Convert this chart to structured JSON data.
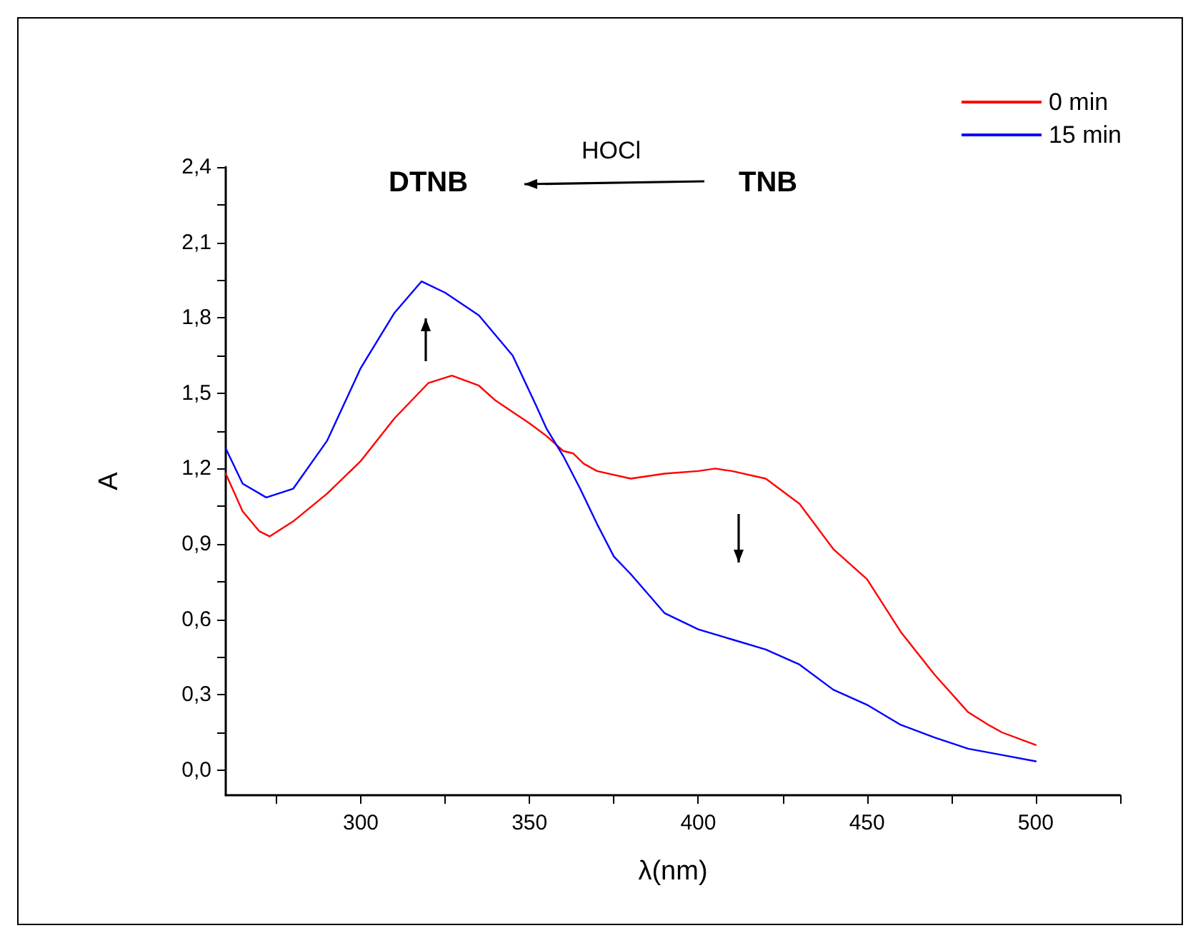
{
  "chart_data": {
    "type": "line",
    "xlabel": "λ(nm)",
    "ylabel": "A",
    "annotations": [
      "DTNB",
      "HOCl",
      "TNB"
    ],
    "xlim": [
      260,
      525
    ],
    "xticks": [
      {
        "value": 275,
        "label": null
      },
      300,
      {
        "value": 325,
        "label": null
      },
      350,
      {
        "value": 375,
        "label": null
      },
      400,
      {
        "value": 425,
        "label": null
      },
      450,
      {
        "value": 475,
        "label": null
      },
      500,
      {
        "value": 525,
        "label": null
      }
    ],
    "ylim": [
      -0.1,
      2.4
    ],
    "yticks": [
      {
        "value": 0,
        "label": "0,0"
      },
      {
        "value": 0.15,
        "label": null
      },
      {
        "value": 0.3,
        "label": "0,3"
      },
      {
        "value": 0.45,
        "label": null
      },
      {
        "value": 0.6,
        "label": "0,6"
      },
      {
        "value": 0.75,
        "label": null
      },
      {
        "value": 0.9,
        "label": "0,9"
      },
      {
        "value": 1.05,
        "label": null
      },
      {
        "value": 1.2,
        "label": "1,2"
      },
      {
        "value": 1.35,
        "label": null
      },
      {
        "value": 1.5,
        "label": "1,5"
      },
      {
        "value": 1.65,
        "label": null
      },
      {
        "value": 1.8,
        "label": "1,8"
      },
      {
        "value": 1.95,
        "label": null
      },
      {
        "value": 2.1,
        "label": "2,1"
      },
      {
        "value": 2.25,
        "label": null
      },
      {
        "value": 2.4,
        "label": "2,4"
      }
    ],
    "grid": false,
    "legend": "top right",
    "marker": "none",
    "line_style": "solid",
    "series": [
      {
        "name": "0 min",
        "color": "#ff0000",
        "x": [
          260,
          265,
          270,
          273,
          280,
          290,
          300,
          310,
          320,
          327,
          335,
          340,
          350,
          355,
          360,
          363,
          366,
          370,
          380,
          390,
          400,
          405,
          410,
          420,
          430,
          440,
          450,
          460,
          470,
          480,
          486,
          490,
          500
        ],
        "values": [
          1.18,
          1.03,
          0.95,
          0.93,
          0.99,
          1.1,
          1.23,
          1.4,
          1.54,
          1.57,
          1.53,
          1.47,
          1.38,
          1.33,
          1.27,
          1.26,
          1.22,
          1.19,
          1.16,
          1.18,
          1.19,
          1.2,
          1.19,
          1.16,
          1.06,
          0.88,
          0.76,
          0.55,
          0.38,
          0.23,
          0.18,
          0.15,
          0.1
        ]
      },
      {
        "name": "15 min",
        "color": "#0000ff",
        "x": [
          260,
          265,
          272,
          280,
          290,
          300,
          310,
          318,
          325,
          335,
          345,
          352,
          355,
          360,
          365,
          370,
          375,
          380,
          390,
          400,
          410,
          420,
          430,
          440,
          450,
          460,
          470,
          480,
          486,
          490,
          500
        ],
        "values": [
          1.28,
          1.14,
          1.085,
          1.12,
          1.31,
          1.6,
          1.82,
          1.945,
          1.9,
          1.81,
          1.65,
          1.45,
          1.36,
          1.25,
          1.12,
          0.98,
          0.85,
          0.78,
          0.625,
          0.56,
          0.52,
          0.48,
          0.42,
          0.32,
          0.26,
          0.18,
          0.13,
          0.085,
          0.07,
          0.06,
          0.035
        ]
      }
    ]
  }
}
